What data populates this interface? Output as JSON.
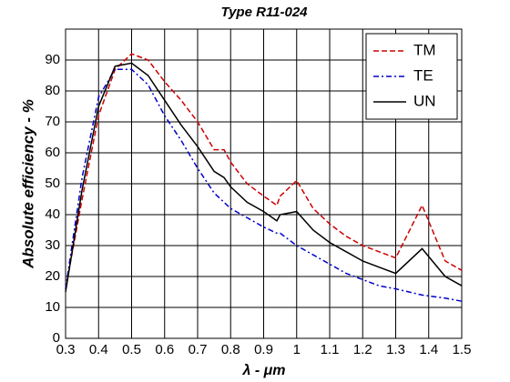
{
  "chart_data": {
    "type": "line",
    "title": "Type R11-024",
    "x_label": "λ - μm",
    "y_label": "Absolute efficiency - %",
    "x": [
      0.3,
      0.35,
      0.4,
      0.45,
      0.5,
      0.55,
      0.6,
      0.65,
      0.7,
      0.75,
      0.78,
      0.8,
      0.85,
      0.9,
      0.94,
      0.95,
      1.0,
      1.05,
      1.1,
      1.15,
      1.2,
      1.25,
      1.3,
      1.38,
      1.45,
      1.5
    ],
    "series": [
      {
        "name": "TM",
        "color": "#cc0000",
        "linestyle": "dashed",
        "values": [
          16,
          45,
          72,
          87,
          92,
          90,
          83,
          77,
          70,
          61,
          61,
          57,
          50,
          46,
          43,
          46,
          51,
          42,
          37,
          33,
          30,
          28,
          26,
          43,
          25,
          22
        ]
      },
      {
        "name": "TE",
        "color": "#0000cc",
        "linestyle": "dashdot",
        "values": [
          16,
          52,
          78,
          87,
          87,
          82,
          72,
          64,
          55,
          47,
          44,
          42,
          39,
          36,
          34,
          34,
          30,
          27,
          24,
          21,
          19,
          17,
          16,
          14,
          13,
          12
        ]
      },
      {
        "name": "UN",
        "color": "#000000",
        "linestyle": "solid",
        "values": [
          15,
          48,
          75,
          88,
          89,
          85,
          77,
          69,
          62,
          54,
          52,
          49,
          44,
          41,
          38,
          40,
          41,
          35,
          31,
          28,
          25,
          23,
          21,
          29,
          20,
          17
        ]
      }
    ],
    "xlim": [
      0.3,
      1.5
    ],
    "xticks": [
      0.3,
      0.4,
      0.5,
      0.6,
      0.7,
      0.8,
      0.9,
      1,
      1.1,
      1.2,
      1.3,
      1.4,
      1.5
    ],
    "ylim": [
      0,
      100
    ],
    "yticks": [
      0,
      10,
      20,
      30,
      40,
      50,
      60,
      70,
      80,
      90
    ],
    "grid": true,
    "legend": "upper right"
  }
}
